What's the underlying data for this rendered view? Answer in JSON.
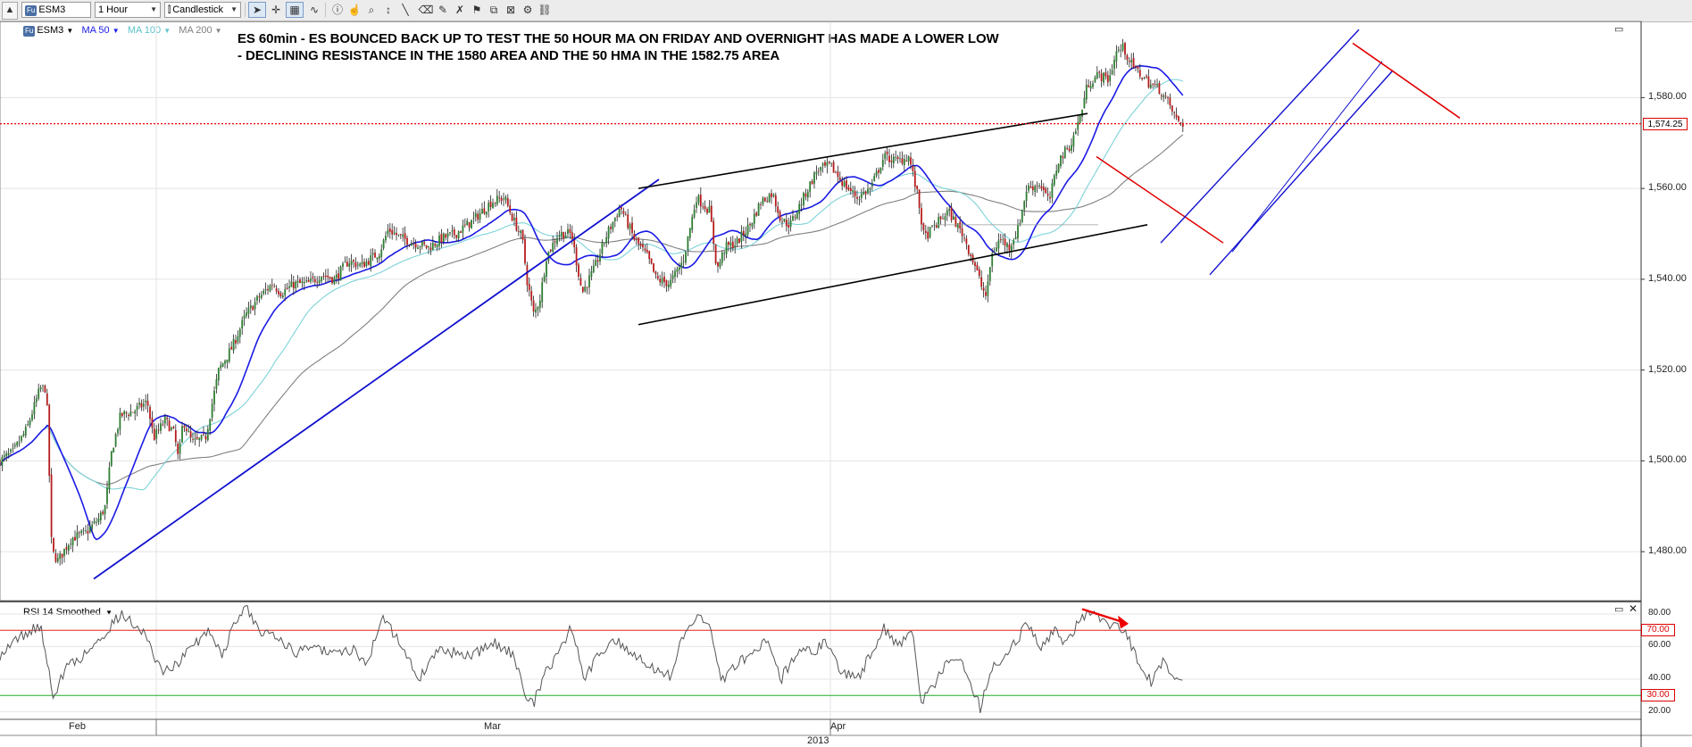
{
  "toolbar": {
    "symbol": "ESM3",
    "interval": "1 Hour",
    "chart_style": "Candlestick",
    "tools": [
      "cursor-icon",
      "crosshair-icon",
      "grid-icon",
      "indicator-icon",
      "info-icon",
      "pan-icon",
      "zoom-icon",
      "measure-icon",
      "line-tool-icon",
      "eraser-icon",
      "drawing-icon",
      "alerts-icon",
      "compare-icon",
      "settings-icon",
      "link-icon"
    ]
  },
  "legend": {
    "symbol": "ESM3",
    "ma50": "MA 50",
    "ma100": "MA 100",
    "ma200": "MA 200"
  },
  "headline": {
    "line1": "ES 60min - ES BOUNCED BACK UP TO TEST THE 50 HOUR MA ON FRIDAY AND OVERNIGHT HAS MADE A LOWER LOW",
    "line2": "- DECLINING RESISTANCE IN THE 1580 AREA AND THE 50 HMA IN THE 1582.75 AREA"
  },
  "indicator_panel": {
    "title": "RSI 14 Smoothed"
  },
  "colors": {
    "up": "#2e7d32",
    "down": "#b71c1c",
    "ma50": "#1a1ae6",
    "ma100": "#7dd3d8",
    "ma200": "#808080",
    "trendline": "#1010d0",
    "channel": "#000000",
    "resistance": "#e00000",
    "rsi_line": "#555555",
    "rsi_70": "#e02020",
    "rsi_30": "#22aa22"
  },
  "chart_data": [
    {
      "type": "candlestick",
      "name": "ESM3",
      "ylim": [
        1470,
        1596
      ],
      "yticks": [
        1480,
        1500,
        1520,
        1540,
        1560,
        1580
      ],
      "ytick_labels": [
        "1,480.00",
        "1,500.00",
        "1,520.00",
        "1,540.00",
        "1,560.00",
        "1,580.00"
      ],
      "current_price": 1574.25,
      "current_price_label": "1,574.25",
      "x_range": [
        0,
        1825
      ],
      "x_month_starts": [
        175,
        930
      ],
      "x_labels": [
        {
          "x": 87,
          "text": "Feb"
        },
        {
          "x": 552,
          "text": "Mar"
        },
        {
          "x": 940,
          "text": "Apr"
        }
      ],
      "x_year_label": "2013",
      "anchors": [
        [
          0,
          1500
        ],
        [
          15,
          1502
        ],
        [
          30,
          1507
        ],
        [
          45,
          1516
        ],
        [
          52,
          1516
        ],
        [
          58,
          1480
        ],
        [
          65,
          1478
        ],
        [
          80,
          1483
        ],
        [
          95,
          1484
        ],
        [
          110,
          1487
        ],
        [
          118,
          1490
        ],
        [
          125,
          1502
        ],
        [
          135,
          1510
        ],
        [
          150,
          1511
        ],
        [
          165,
          1513
        ],
        [
          172,
          1505
        ],
        [
          185,
          1509
        ],
        [
          195,
          1506
        ],
        [
          200,
          1500
        ],
        [
          205,
          1509
        ],
        [
          215,
          1504
        ],
        [
          230,
          1505
        ],
        [
          245,
          1520
        ],
        [
          260,
          1525
        ],
        [
          275,
          1532
        ],
        [
          290,
          1536
        ],
        [
          305,
          1539
        ],
        [
          315,
          1537
        ],
        [
          330,
          1539
        ],
        [
          345,
          1539
        ],
        [
          360,
          1541
        ],
        [
          375,
          1540
        ],
        [
          390,
          1544
        ],
        [
          405,
          1543
        ],
        [
          425,
          1546
        ],
        [
          435,
          1551
        ],
        [
          450,
          1549
        ],
        [
          465,
          1548
        ],
        [
          480,
          1547
        ],
        [
          495,
          1549
        ],
        [
          510,
          1550
        ],
        [
          530,
          1553
        ],
        [
          550,
          1557
        ],
        [
          565,
          1558
        ],
        [
          575,
          1553
        ],
        [
          585,
          1549
        ],
        [
          590,
          1540
        ],
        [
          598,
          1532
        ],
        [
          605,
          1536
        ],
        [
          612,
          1545
        ],
        [
          625,
          1550
        ],
        [
          640,
          1550
        ],
        [
          652,
          1537
        ],
        [
          665,
          1542
        ],
        [
          680,
          1550
        ],
        [
          695,
          1556
        ],
        [
          710,
          1549
        ],
        [
          725,
          1545
        ],
        [
          735,
          1540
        ],
        [
          750,
          1539
        ],
        [
          765,
          1544
        ],
        [
          780,
          1558
        ],
        [
          795,
          1555
        ],
        [
          803,
          1542
        ],
        [
          812,
          1547
        ],
        [
          825,
          1548
        ],
        [
          840,
          1552
        ],
        [
          852,
          1557
        ],
        [
          865,
          1559
        ],
        [
          875,
          1553
        ],
        [
          885,
          1552
        ],
        [
          900,
          1558
        ],
        [
          915,
          1564
        ],
        [
          930,
          1565
        ],
        [
          945,
          1561
        ],
        [
          960,
          1558
        ],
        [
          975,
          1560
        ],
        [
          990,
          1567
        ],
        [
          1005,
          1566
        ],
        [
          1018,
          1567
        ],
        [
          1028,
          1558
        ],
        [
          1035,
          1549
        ],
        [
          1048,
          1552
        ],
        [
          1062,
          1555
        ],
        [
          1078,
          1550
        ],
        [
          1092,
          1543
        ],
        [
          1100,
          1538
        ],
        [
          1105,
          1536
        ],
        [
          1110,
          1545
        ],
        [
          1120,
          1549
        ],
        [
          1130,
          1547
        ],
        [
          1140,
          1551
        ],
        [
          1150,
          1560
        ],
        [
          1165,
          1561
        ],
        [
          1175,
          1557
        ],
        [
          1185,
          1566
        ],
        [
          1200,
          1570
        ],
        [
          1210,
          1576
        ],
        [
          1218,
          1583
        ],
        [
          1230,
          1585
        ],
        [
          1242,
          1584
        ],
        [
          1250,
          1590
        ],
        [
          1258,
          1591
        ],
        [
          1268,
          1587
        ],
        [
          1278,
          1585
        ],
        [
          1288,
          1583
        ],
        [
          1298,
          1582
        ],
        [
          1308,
          1579
        ],
        [
          1318,
          1575
        ],
        [
          1325,
          1574.25
        ]
      ]
    },
    {
      "type": "line",
      "name": "RSI 14 Smoothed",
      "ylim": [
        17,
        86
      ],
      "yticks": [
        20,
        40,
        60,
        80
      ],
      "ytick_labels": [
        "20.00",
        "40.00",
        "60.00",
        "80.00"
      ],
      "overbought": 70,
      "oversold": 30,
      "overbought_label": "70.00",
      "oversold_label": "30.00",
      "anchors": [
        [
          0,
          55
        ],
        [
          20,
          65
        ],
        [
          45,
          73
        ],
        [
          60,
          30
        ],
        [
          75,
          48
        ],
        [
          95,
          55
        ],
        [
          120,
          70
        ],
        [
          135,
          80
        ],
        [
          160,
          70
        ],
        [
          180,
          45
        ],
        [
          200,
          50
        ],
        [
          215,
          60
        ],
        [
          235,
          70
        ],
        [
          250,
          55
        ],
        [
          262,
          74
        ],
        [
          275,
          84
        ],
        [
          290,
          70
        ],
        [
          310,
          68
        ],
        [
          330,
          55
        ],
        [
          350,
          62
        ],
        [
          370,
          55
        ],
        [
          395,
          58
        ],
        [
          410,
          50
        ],
        [
          430,
          78
        ],
        [
          450,
          60
        ],
        [
          470,
          40
        ],
        [
          490,
          58
        ],
        [
          510,
          56
        ],
        [
          530,
          55
        ],
        [
          555,
          62
        ],
        [
          575,
          55
        ],
        [
          588,
          30
        ],
        [
          598,
          25
        ],
        [
          610,
          45
        ],
        [
          625,
          55
        ],
        [
          640,
          72
        ],
        [
          655,
          40
        ],
        [
          670,
          55
        ],
        [
          690,
          65
        ],
        [
          710,
          55
        ],
        [
          730,
          48
        ],
        [
          750,
          42
        ],
        [
          765,
          65
        ],
        [
          780,
          80
        ],
        [
          795,
          72
        ],
        [
          808,
          38
        ],
        [
          825,
          50
        ],
        [
          840,
          55
        ],
        [
          860,
          65
        ],
        [
          875,
          40
        ],
        [
          895,
          60
        ],
        [
          910,
          55
        ],
        [
          925,
          65
        ],
        [
          940,
          45
        ],
        [
          960,
          40
        ],
        [
          975,
          55
        ],
        [
          990,
          72
        ],
        [
          1005,
          60
        ],
        [
          1022,
          67
        ],
        [
          1032,
          25
        ],
        [
          1045,
          35
        ],
        [
          1065,
          55
        ],
        [
          1080,
          48
        ],
        [
          1098,
          22
        ],
        [
          1110,
          45
        ],
        [
          1125,
          55
        ],
        [
          1140,
          65
        ],
        [
          1150,
          74
        ],
        [
          1165,
          60
        ],
        [
          1180,
          70
        ],
        [
          1195,
          62
        ],
        [
          1210,
          78
        ],
        [
          1222,
          82
        ],
        [
          1238,
          75
        ],
        [
          1255,
          72
        ],
        [
          1262,
          68
        ],
        [
          1275,
          50
        ],
        [
          1290,
          38
        ],
        [
          1302,
          52
        ],
        [
          1312,
          42
        ],
        [
          1325,
          38
        ]
      ]
    }
  ]
}
